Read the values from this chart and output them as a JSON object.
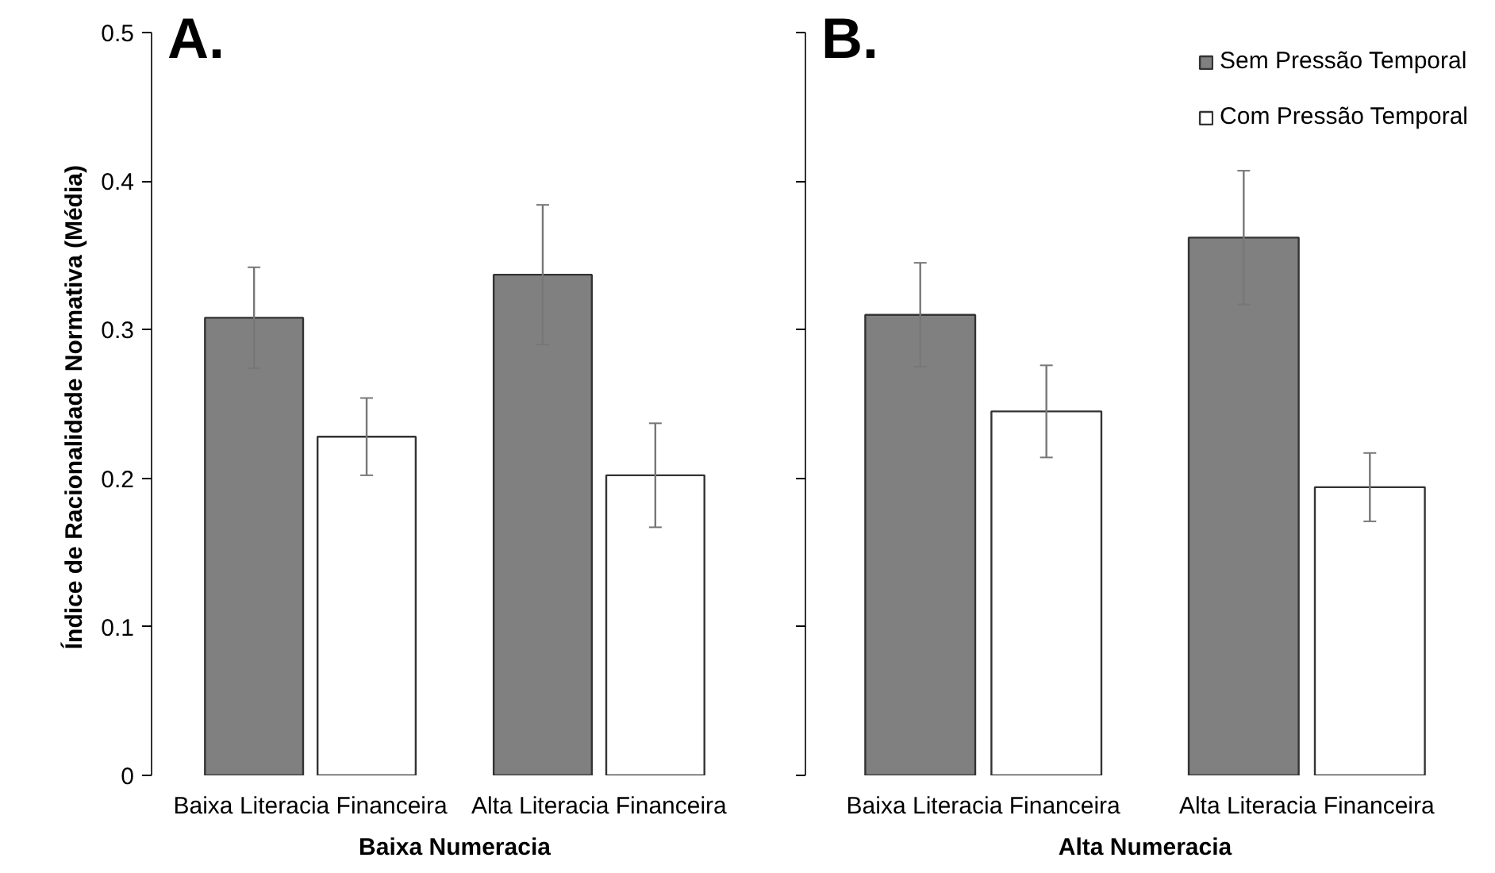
{
  "chart_data": [
    {
      "type": "bar",
      "title": "A.",
      "xlabel": "Baixa Numeracia",
      "ylabel": "Índice de Racionalidade  Normativa (Média)",
      "categories": [
        "Baixa Literacia Financeira",
        "Alta Literacia Financeira"
      ],
      "series": [
        {
          "color": "#808080",
          "values": [
            0.308,
            0.337
          ],
          "errors": [
            0.034,
            0.047
          ]
        },
        {
          "color": "#ffffff",
          "values": [
            0.228,
            0.202
          ],
          "errors": [
            0.026,
            0.035
          ]
        }
      ],
      "ylim": [
        0,
        0.5
      ],
      "yticks": [
        0,
        0.1,
        0.2,
        0.3,
        0.4,
        0.5
      ],
      "grid": false
    },
    {
      "type": "bar",
      "title": "B.",
      "xlabel": "Alta Numeracia",
      "categories": [
        "Baixa Literacia Financeira",
        "Alta Literacia Financeira"
      ],
      "series": [
        {
          "name": "Sem Pressão Temporal",
          "color": "#808080",
          "values": [
            0.31,
            0.362
          ],
          "errors": [
            0.035,
            0.045
          ]
        },
        {
          "name": "Com Pressão Temporal",
          "color": "#ffffff",
          "values": [
            0.245,
            0.194
          ],
          "errors": [
            0.031,
            0.023
          ]
        }
      ],
      "ylim": [
        0,
        0.5
      ],
      "yticks": [
        0,
        0.1,
        0.2,
        0.3,
        0.4,
        0.5
      ],
      "grid": false,
      "legend": "top right",
      "tick_labels": "x"
    }
  ]
}
